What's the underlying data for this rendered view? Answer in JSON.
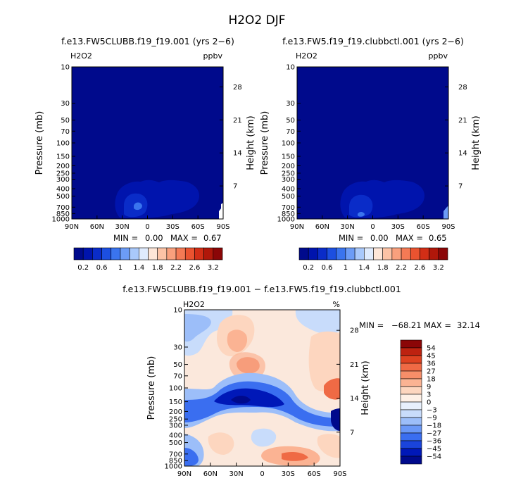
{
  "figure_title": "H2O2 DJF",
  "colors": {
    "abs_palette": [
      "#000a8c",
      "#0014ad",
      "#0a2cc8",
      "#1c4fe0",
      "#3a74ee",
      "#6c9cf6",
      "#a9c9fb",
      "#dfebfd",
      "#fde6d8",
      "#fcc3a6",
      "#f9a07d",
      "#f47a55",
      "#ea5330",
      "#d22e16",
      "#b0170a",
      "#8b0607"
    ],
    "diff_palette": [
      "#000a8c",
      "#0018b8",
      "#1a44db",
      "#3a6ef0",
      "#6a98f7",
      "#9cbef9",
      "#c8dcfb",
      "#e8f0fd",
      "#fef0e6",
      "#fdd6bf",
      "#fbb393",
      "#f78e69",
      "#ef6a45",
      "#dd4221",
      "#bd2210",
      "#8b0607"
    ]
  },
  "chart_data": [
    {
      "type": "heatmap",
      "title": "f.e13.FW5CLUBB.f19_f19.001 (yrs 2−6)",
      "variable": "H2O2",
      "units": "ppbv",
      "ylabel": "Pressure (mb)",
      "y2label": "Height (km)",
      "x_ticks": [
        "90N",
        "60N",
        "30N",
        "0",
        "30S",
        "60S",
        "90S"
      ],
      "y_ticks": [
        "10",
        "30",
        "50",
        "70",
        "100",
        "150",
        "200",
        "250",
        "300",
        "400",
        "500",
        "700",
        "850",
        "1000"
      ],
      "y2_ticks": [
        "28",
        "21",
        "14",
        "7"
      ],
      "min_label": "MIN =",
      "min_value": "0.00",
      "max_label": "MAX =",
      "max_value": "0.67",
      "colorbar_labels": [
        "0.2",
        "0.6",
        "1",
        "1.4",
        "1.8",
        "2.2",
        "2.6",
        "3.2"
      ]
    },
    {
      "type": "heatmap",
      "title": "f.e13.FW5.f19_f19.clubbctl.001 (yrs 2−6)",
      "variable": "H2O2",
      "units": "ppbv",
      "ylabel": "Pressure (mb)",
      "y2label": "Height (km)",
      "x_ticks": [
        "90N",
        "60N",
        "30N",
        "0",
        "30S",
        "60S",
        "90S"
      ],
      "y_ticks": [
        "10",
        "30",
        "50",
        "70",
        "100",
        "150",
        "200",
        "250",
        "300",
        "400",
        "500",
        "700",
        "850",
        "1000"
      ],
      "y2_ticks": [
        "28",
        "21",
        "14",
        "7"
      ],
      "min_label": "MIN =",
      "min_value": "0.00",
      "max_label": "MAX =",
      "max_value": "0.65",
      "colorbar_labels": [
        "0.2",
        "0.6",
        "1",
        "1.4",
        "1.8",
        "2.2",
        "2.6",
        "3.2"
      ]
    },
    {
      "type": "heatmap",
      "title": "f.e13.FW5CLUBB.f19_f19.001 − f.e13.FW5.f19_f19.clubbctl.001",
      "variable": "H2O2",
      "units": "%",
      "ylabel": "Pressure (mb)",
      "y2label": "Height (km)",
      "x_ticks": [
        "90N",
        "60N",
        "30N",
        "0",
        "30S",
        "60S",
        "90S"
      ],
      "y_ticks": [
        "10",
        "30",
        "50",
        "70",
        "100",
        "150",
        "200",
        "250",
        "300",
        "400",
        "500",
        "700",
        "850",
        "1000"
      ],
      "y2_ticks": [
        "28",
        "21",
        "14",
        "7"
      ],
      "min_label": "MIN =",
      "min_value": "−68.21",
      "max_label": "MAX =",
      "max_value": "32.14",
      "colorbar_labels": [
        "54",
        "45",
        "36",
        "27",
        "18",
        "9",
        "3",
        "0",
        "−3",
        "−9",
        "−18",
        "−27",
        "−36",
        "−45",
        "−54"
      ]
    }
  ]
}
